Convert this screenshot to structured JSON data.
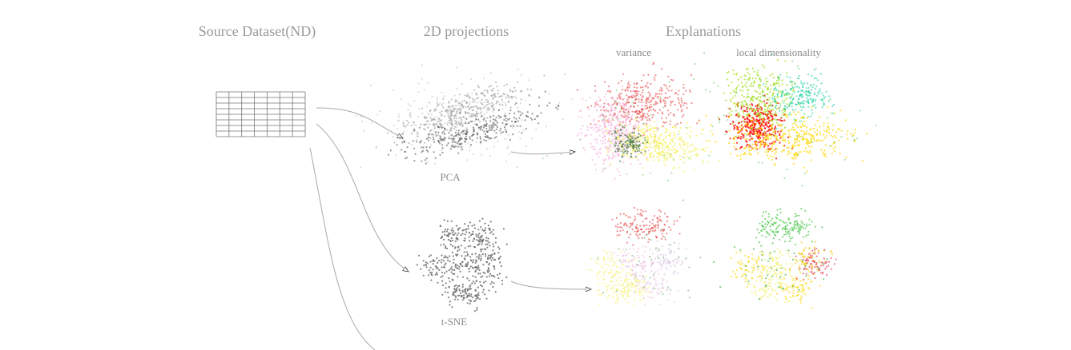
{
  "header": {
    "source": "Source Dataset(ND)",
    "projections": "2D projections",
    "explanations": "Explanations"
  },
  "explanation_columns": [
    "variance",
    "local dimensionality"
  ],
  "projections": [
    "PCA",
    "t-SNE"
  ]
}
